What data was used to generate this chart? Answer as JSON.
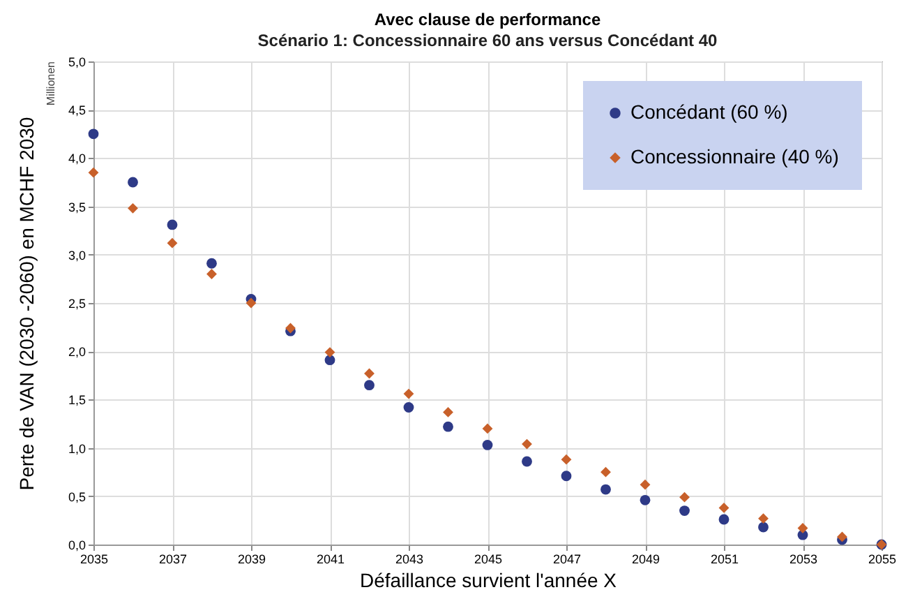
{
  "chart_data": {
    "type": "scatter",
    "title": "Avec clause de performance",
    "subtitle": "Scénario 1: Concessionnaire  60 ans versus Concédant  40",
    "xlabel": "Défaillance survient l'année X",
    "ylabel": "Perte de VAN (2030 -2060) en MCHF 2030",
    "annotations": [
      "Millionen"
    ],
    "x": [
      2035,
      2036,
      2037,
      2038,
      2039,
      2040,
      2041,
      2042,
      2043,
      2044,
      2045,
      2046,
      2047,
      2048,
      2049,
      2050,
      2051,
      2052,
      2053,
      2054,
      2055
    ],
    "series": [
      {
        "name": "Concédant (60 %)",
        "color": "#2e3a87",
        "marker": "circle",
        "values": [
          4.25,
          3.75,
          3.31,
          2.91,
          2.54,
          2.21,
          1.91,
          1.65,
          1.42,
          1.22,
          1.03,
          0.86,
          0.71,
          0.57,
          0.46,
          0.35,
          0.26,
          0.18,
          0.1,
          0.05,
          0.0
        ]
      },
      {
        "name": "Concessionnaire (40 %)",
        "color": "#c8602a",
        "marker": "diamond",
        "values": [
          3.85,
          3.48,
          3.12,
          2.8,
          2.5,
          2.24,
          1.99,
          1.77,
          1.56,
          1.37,
          1.2,
          1.04,
          0.88,
          0.75,
          0.62,
          0.49,
          0.38,
          0.27,
          0.17,
          0.08,
          0.0
        ]
      }
    ],
    "xlim": [
      2035,
      2055
    ],
    "xticks": [
      2035,
      2037,
      2039,
      2041,
      2043,
      2045,
      2047,
      2049,
      2051,
      2053,
      2055
    ],
    "ylim": [
      0,
      5
    ],
    "yticks": [
      {
        "value": 0,
        "label": "0,0"
      },
      {
        "value": 0.5,
        "label": "0,5"
      },
      {
        "value": 1,
        "label": "1,0"
      },
      {
        "value": 1.5,
        "label": "1,5"
      },
      {
        "value": 2,
        "label": "2,0"
      },
      {
        "value": 2.5,
        "label": "2,5"
      },
      {
        "value": 3,
        "label": "3,0"
      },
      {
        "value": 3.5,
        "label": "3,5"
      },
      {
        "value": 4,
        "label": "4,0"
      },
      {
        "value": 4.5,
        "label": "4,5"
      },
      {
        "value": 5,
        "label": "5,0"
      }
    ],
    "grid": true,
    "legend": "top right"
  }
}
